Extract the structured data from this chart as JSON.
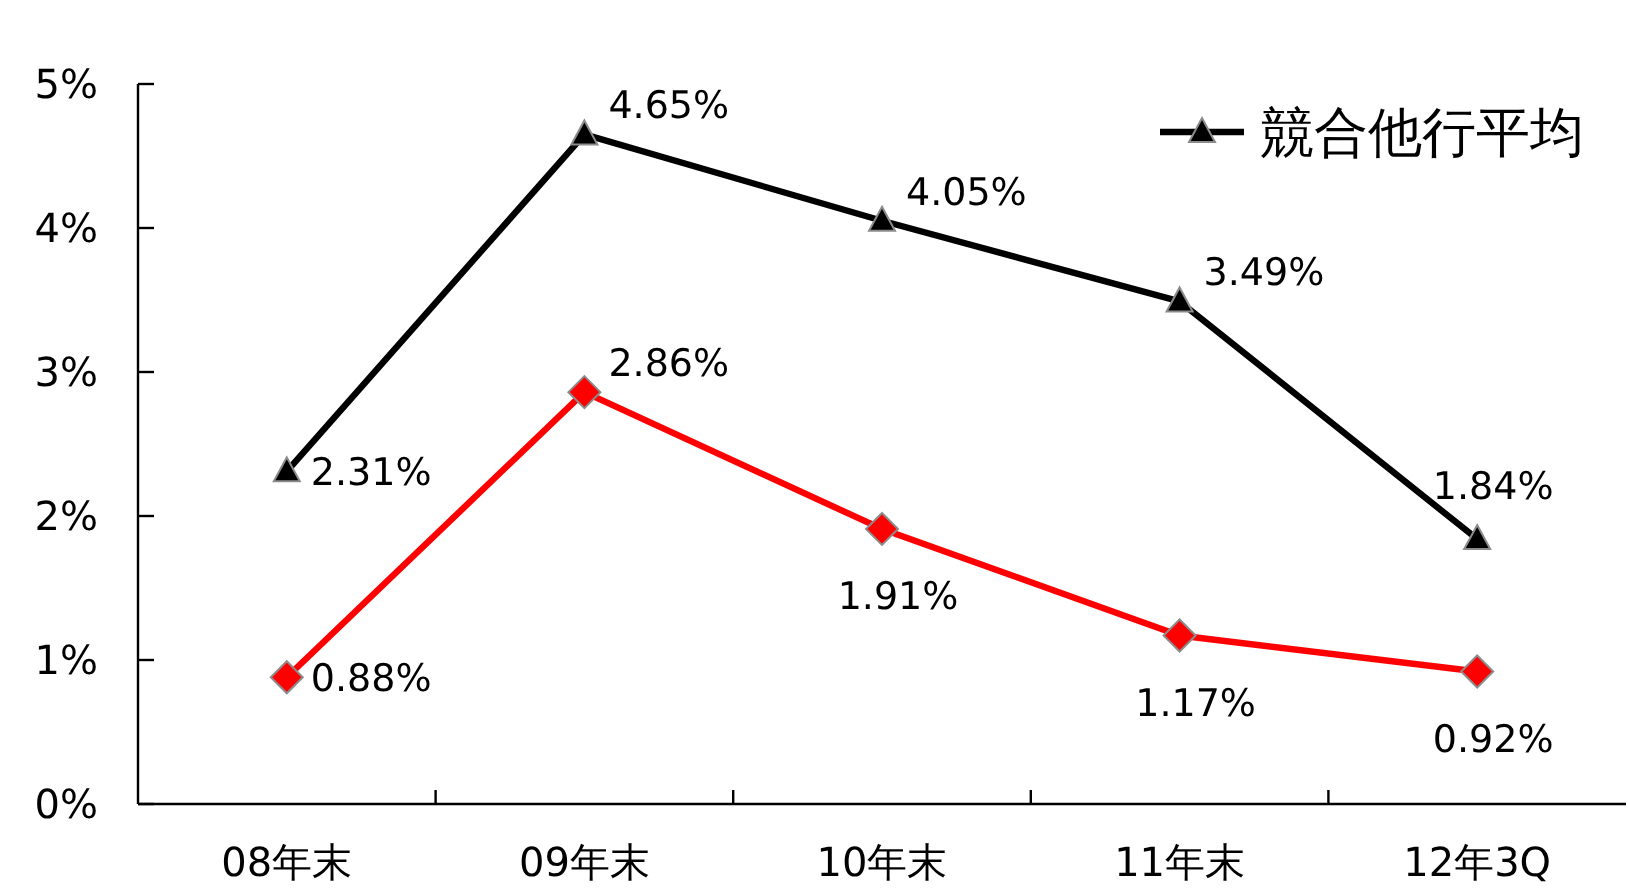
{
  "chart_data": {
    "type": "line",
    "categories": [
      "08年末",
      "09年末",
      "10年末",
      "11年末",
      "12年3Q"
    ],
    "series": [
      {
        "color": "#ff0000",
        "marker": "diamond",
        "values": [
          0.88,
          2.86,
          1.91,
          1.17,
          0.92
        ],
        "value_labels": [
          "0.88%",
          "2.86%",
          "1.91%",
          "1.17%",
          "0.92%"
        ]
      },
      {
        "name": "競合他行平均",
        "color": "#000000",
        "marker": "triangle",
        "values": [
          2.31,
          4.65,
          4.05,
          3.49,
          1.84
        ],
        "value_labels": [
          "2.31%",
          "4.65%",
          "4.05%",
          "3.49%",
          "1.84%"
        ]
      }
    ],
    "ylim": [
      0,
      5
    ],
    "yticks": [
      {
        "value": 0,
        "label": "0%"
      },
      {
        "value": 1,
        "label": "1%"
      },
      {
        "value": 2,
        "label": "2%"
      },
      {
        "value": 3,
        "label": "3%"
      },
      {
        "value": 4,
        "label": "4%"
      },
      {
        "value": 5,
        "label": "5%"
      }
    ],
    "grid": false,
    "legend": "top right",
    "line_style": "solid"
  }
}
